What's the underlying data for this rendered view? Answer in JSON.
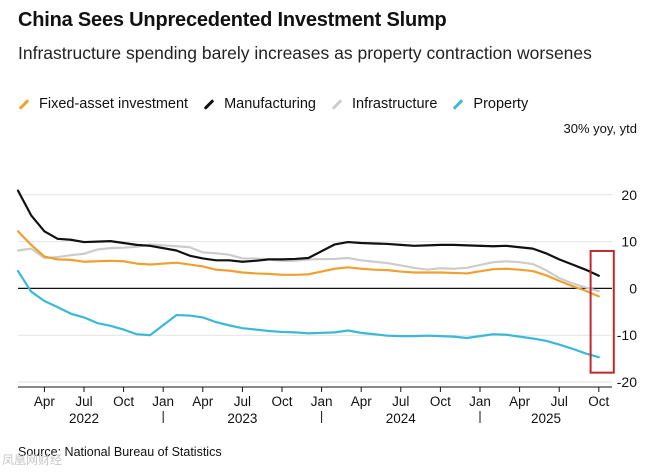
{
  "title": "China Sees Unprecedented Investment Slump",
  "subtitle": "Infrastructure spending barely increases as property contraction worsenes",
  "unit_label": "30% yoy, ytd",
  "source": "Source: National Bureau of Statistics",
  "watermark": "凤凰网财经",
  "colors": {
    "fixed_asset": "#f0a030",
    "manufacturing": "#111111",
    "infrastructure": "#cccccc",
    "property": "#3bb8d8",
    "highlight_box": "#c0282d"
  },
  "chart_data": {
    "type": "line",
    "title": "China Sees Unprecedented Investment Slump",
    "subtitle": "Infrastructure spending barely increases as property contraction worsenes",
    "ylabel": "30% yoy, ytd",
    "ylim": [
      -20,
      30
    ],
    "y_ticks": [
      20,
      10,
      0,
      -10,
      -20
    ],
    "y_tick_labels": [
      "20",
      "10",
      "0",
      "-10",
      "-20"
    ],
    "xlim": [
      "2022-02",
      "2025-11"
    ],
    "x_ticks": [
      {
        "x": "2022-04",
        "label": "Apr"
      },
      {
        "x": "2022-07",
        "label": "Jul"
      },
      {
        "x": "2022-10",
        "label": "Oct"
      },
      {
        "x": "2023-01",
        "label": "Jan"
      },
      {
        "x": "2023-04",
        "label": "Apr"
      },
      {
        "x": "2023-07",
        "label": "Jul"
      },
      {
        "x": "2023-10",
        "label": "Oct"
      },
      {
        "x": "2024-01",
        "label": "Jan"
      },
      {
        "x": "2024-04",
        "label": "Apr"
      },
      {
        "x": "2024-07",
        "label": "Jul"
      },
      {
        "x": "2024-10",
        "label": "Oct"
      },
      {
        "x": "2025-01",
        "label": "Jan"
      },
      {
        "x": "2025-04",
        "label": "Apr"
      },
      {
        "x": "2025-07",
        "label": "Jul"
      },
      {
        "x": "2025-10",
        "label": "Oct"
      }
    ],
    "year_labels": [
      {
        "x": "2022-07",
        "label": "2022"
      },
      {
        "x": "2023-07",
        "label": "2023"
      },
      {
        "x": "2024-07",
        "label": "2024"
      },
      {
        "x": "2025-06",
        "label": "2025"
      }
    ],
    "year_separators": [
      "2022-12",
      "2023-12",
      "2024-12"
    ],
    "highlight": {
      "x": [
        "2025-09",
        "2025-10"
      ],
      "y": [
        -18,
        8
      ]
    },
    "x": [
      "2022-02",
      "2022-03",
      "2022-04",
      "2022-05",
      "2022-06",
      "2022-07",
      "2022-08",
      "2022-09",
      "2022-10",
      "2022-11",
      "2022-12",
      "2023-02",
      "2023-03",
      "2023-04",
      "2023-05",
      "2023-06",
      "2023-07",
      "2023-08",
      "2023-09",
      "2023-10",
      "2023-11",
      "2023-12",
      "2024-02",
      "2024-03",
      "2024-04",
      "2024-05",
      "2024-06",
      "2024-07",
      "2024-08",
      "2024-09",
      "2024-10",
      "2024-11",
      "2024-12",
      "2025-02",
      "2025-03",
      "2025-04",
      "2025-05",
      "2025-06",
      "2025-07",
      "2025-08",
      "2025-09",
      "2025-10"
    ],
    "series": [
      {
        "name": "Fixed-asset investment",
        "key": "fixed_asset",
        "values": [
          12.2,
          9.3,
          6.8,
          6.2,
          6.1,
          5.7,
          5.8,
          5.9,
          5.8,
          5.3,
          5.1,
          5.5,
          5.1,
          4.7,
          4.0,
          3.8,
          3.4,
          3.2,
          3.1,
          2.9,
          2.9,
          3.0,
          4.2,
          4.5,
          4.2,
          4.0,
          3.9,
          3.6,
          3.4,
          3.4,
          3.4,
          3.3,
          3.2,
          4.1,
          4.2,
          4.0,
          3.7,
          2.8,
          1.6,
          0.5,
          -0.5,
          -1.7
        ]
      },
      {
        "name": "Manufacturing",
        "key": "manufacturing",
        "values": [
          20.9,
          15.6,
          12.2,
          10.6,
          10.4,
          9.9,
          10.0,
          10.1,
          9.7,
          9.3,
          9.1,
          8.1,
          7.0,
          6.4,
          6.0,
          6.0,
          5.7,
          5.9,
          6.2,
          6.2,
          6.3,
          6.5,
          9.4,
          9.9,
          9.7,
          9.6,
          9.5,
          9.3,
          9.1,
          9.2,
          9.3,
          9.3,
          9.2,
          9.0,
          9.1,
          8.8,
          8.5,
          7.5,
          6.2,
          5.1,
          4.0,
          2.7
        ]
      },
      {
        "name": "Infrastructure",
        "key": "infrastructure",
        "values": [
          8.1,
          8.5,
          6.5,
          6.7,
          7.1,
          7.4,
          8.3,
          8.6,
          8.7,
          8.9,
          9.4,
          9.0,
          8.8,
          7.7,
          7.5,
          7.2,
          6.4,
          6.4,
          6.2,
          5.9,
          5.9,
          6.2,
          6.3,
          6.5,
          6.0,
          5.7,
          5.4,
          4.9,
          4.4,
          4.0,
          4.3,
          4.2,
          4.4,
          5.6,
          5.8,
          5.6,
          5.2,
          3.9,
          2.2,
          1.1,
          0.2,
          -0.6
        ]
      },
      {
        "name": "Property",
        "key": "property",
        "values": [
          3.7,
          -0.7,
          -2.7,
          -4.0,
          -5.4,
          -6.2,
          -7.4,
          -8.0,
          -8.8,
          -9.8,
          -10.0,
          -5.7,
          -5.8,
          -6.2,
          -7.2,
          -7.9,
          -8.5,
          -8.8,
          -9.1,
          -9.3,
          -9.4,
          -9.6,
          -9.4,
          -9.0,
          -9.5,
          -9.8,
          -10.1,
          -10.2,
          -10.2,
          -10.1,
          -10.2,
          -10.3,
          -10.6,
          -9.8,
          -9.9,
          -10.3,
          -10.7,
          -11.2,
          -12.0,
          -12.9,
          -13.9,
          -14.7
        ]
      }
    ]
  }
}
